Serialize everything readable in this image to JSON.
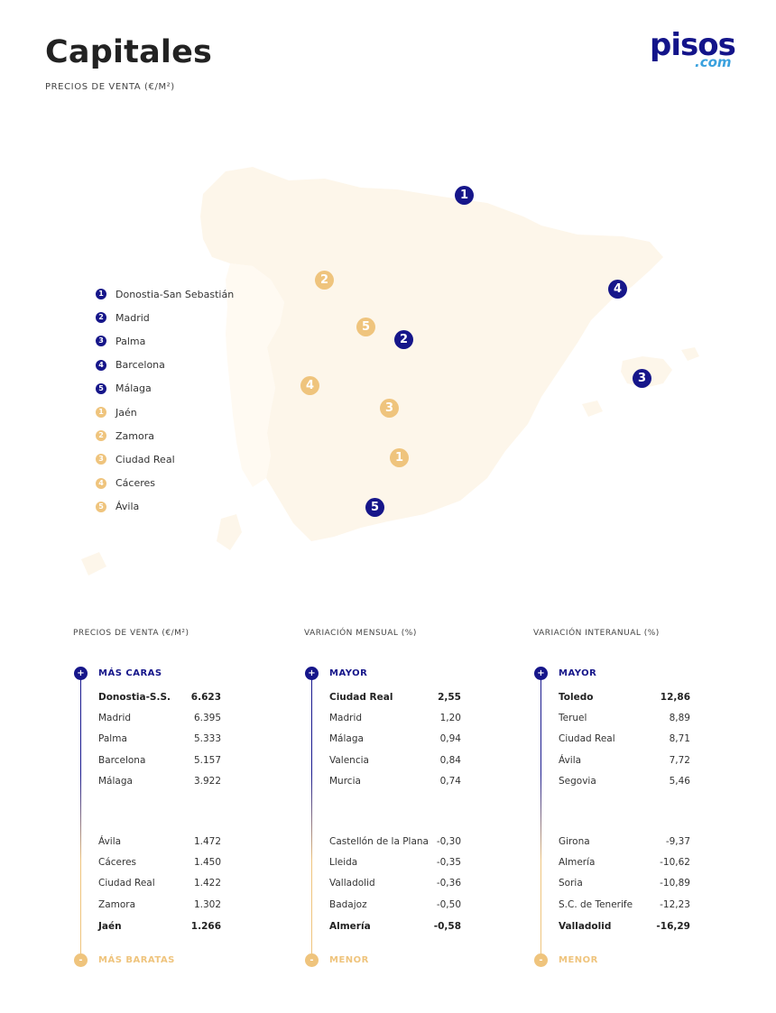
{
  "header": {
    "title": "Capitales",
    "subtitle": "PRECIOS DE VENTA (€/M²)",
    "logo_main": "pisos",
    "logo_suffix": ".com"
  },
  "colors": {
    "navy": "#16168a",
    "gold": "#efc47d",
    "land": "#fdf6ea"
  },
  "legend": [
    {
      "n": "1",
      "label": "Donostia-San Sebastián",
      "group": "navy"
    },
    {
      "n": "2",
      "label": "Madrid",
      "group": "navy"
    },
    {
      "n": "3",
      "label": "Palma",
      "group": "navy"
    },
    {
      "n": "4",
      "label": "Barcelona",
      "group": "navy"
    },
    {
      "n": "5",
      "label": "Málaga",
      "group": "navy"
    },
    {
      "n": "1",
      "label": "Jaén",
      "group": "gold"
    },
    {
      "n": "2",
      "label": "Zamora",
      "group": "gold"
    },
    {
      "n": "3",
      "label": "Ciudad Real",
      "group": "gold"
    },
    {
      "n": "4",
      "label": "Cáceres",
      "group": "gold"
    },
    {
      "n": "5",
      "label": "Ávila",
      "group": "gold"
    }
  ],
  "map_markers": [
    {
      "n": "1",
      "city": "Donostia-San Sebastián",
      "group": "navy"
    },
    {
      "n": "2",
      "city": "Madrid",
      "group": "navy"
    },
    {
      "n": "3",
      "city": "Palma",
      "group": "navy"
    },
    {
      "n": "4",
      "city": "Barcelona",
      "group": "navy"
    },
    {
      "n": "5",
      "city": "Málaga",
      "group": "navy"
    },
    {
      "n": "1",
      "city": "Jaén",
      "group": "gold"
    },
    {
      "n": "2",
      "city": "Zamora",
      "group": "gold"
    },
    {
      "n": "3",
      "city": "Ciudad Real",
      "group": "gold"
    },
    {
      "n": "4",
      "city": "Cáceres",
      "group": "gold"
    },
    {
      "n": "5",
      "city": "Ávila",
      "group": "gold"
    }
  ],
  "tables": [
    {
      "header": "PRECIOS DE VENTA (€/M²)",
      "top_label": "MÁS CARAS",
      "bottom_label": "MÁS BARATAS",
      "plus": "+",
      "minus": "-",
      "top_rows": [
        {
          "name": "Donostia-S.S.",
          "value": "6.623"
        },
        {
          "name": "Madrid",
          "value": "6.395"
        },
        {
          "name": "Palma",
          "value": "5.333"
        },
        {
          "name": "Barcelona",
          "value": "5.157"
        },
        {
          "name": "Málaga",
          "value": "3.922"
        }
      ],
      "bottom_rows": [
        {
          "name": "Ávila",
          "value": "1.472"
        },
        {
          "name": "Cáceres",
          "value": "1.450"
        },
        {
          "name": "Ciudad Real",
          "value": "1.422"
        },
        {
          "name": "Zamora",
          "value": "1.302"
        },
        {
          "name": "Jaén",
          "value": "1.266"
        }
      ]
    },
    {
      "header": "VARIACIÓN MENSUAL (%)",
      "top_label": "MAYOR",
      "bottom_label": "MENOR",
      "plus": "+",
      "minus": "-",
      "top_rows": [
        {
          "name": "Ciudad Real",
          "value": "2,55"
        },
        {
          "name": "Madrid",
          "value": "1,20"
        },
        {
          "name": "Málaga",
          "value": "0,94"
        },
        {
          "name": "Valencia",
          "value": "0,84"
        },
        {
          "name": "Murcia",
          "value": "0,74"
        }
      ],
      "bottom_rows": [
        {
          "name": "Castellón de la Plana",
          "value": "-0,30"
        },
        {
          "name": "Lleida",
          "value": "-0,35"
        },
        {
          "name": "Valladolid",
          "value": "-0,36"
        },
        {
          "name": "Badajoz",
          "value": "-0,50"
        },
        {
          "name": "Almería",
          "value": "-0,58"
        }
      ]
    },
    {
      "header": "VARIACIÓN INTERANUAL (%)",
      "top_label": "MAYOR",
      "bottom_label": "MENOR",
      "plus": "+",
      "minus": "-",
      "top_rows": [
        {
          "name": "Toledo",
          "value": "12,86"
        },
        {
          "name": "Teruel",
          "value": "8,89"
        },
        {
          "name": "Ciudad Real",
          "value": "8,71"
        },
        {
          "name": "Ávila",
          "value": "7,72"
        },
        {
          "name": "Segovia",
          "value": "5,46"
        }
      ],
      "bottom_rows": [
        {
          "name": "Girona",
          "value": "-9,37"
        },
        {
          "name": "Almería",
          "value": "-10,62"
        },
        {
          "name": "Soria",
          "value": "-10,89"
        },
        {
          "name": "S.C. de Tenerife",
          "value": "-12,23"
        },
        {
          "name": "Valladolid",
          "value": "-16,29"
        }
      ]
    }
  ]
}
